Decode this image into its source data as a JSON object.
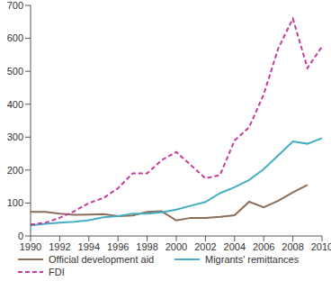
{
  "chart_data": {
    "type": "line",
    "x": [
      1990,
      1991,
      1992,
      1993,
      1994,
      1995,
      1996,
      1997,
      1998,
      1999,
      2000,
      2001,
      2002,
      2003,
      2004,
      2005,
      2006,
      2007,
      2008,
      2009,
      2010
    ],
    "series": [
      {
        "name": "Official development aid",
        "color": "#8c6d57",
        "line_style": "solid",
        "values": [
          73,
          73,
          68,
          64,
          65,
          66,
          60,
          62,
          73,
          75,
          47,
          55,
          55,
          58,
          63,
          104,
          87,
          107,
          132,
          155,
          null
        ]
      },
      {
        "name": "Migrants' remittances",
        "color": "#45aec4",
        "line_style": "solid",
        "values": [
          32,
          37,
          40,
          43,
          48,
          57,
          60,
          68,
          68,
          72,
          80,
          92,
          103,
          130,
          148,
          170,
          203,
          245,
          287,
          280,
          297
        ]
      },
      {
        "name": "FDI",
        "color": "#c43d9c",
        "line_style": "dashed",
        "values": [
          35,
          40,
          55,
          75,
          100,
          115,
          145,
          190,
          190,
          230,
          255,
          215,
          175,
          185,
          290,
          330,
          430,
          570,
          660,
          510,
          575
        ]
      }
    ],
    "xlim": [
      1990,
      2010
    ],
    "xticks": [
      1990,
      1992,
      1994,
      1996,
      1998,
      2000,
      2002,
      2004,
      2006,
      2008,
      2010
    ],
    "ylim": [
      0,
      700
    ],
    "yticks": [
      0,
      100,
      200,
      300,
      400,
      500,
      600,
      700
    ],
    "grid": false,
    "legend": "bottom"
  }
}
